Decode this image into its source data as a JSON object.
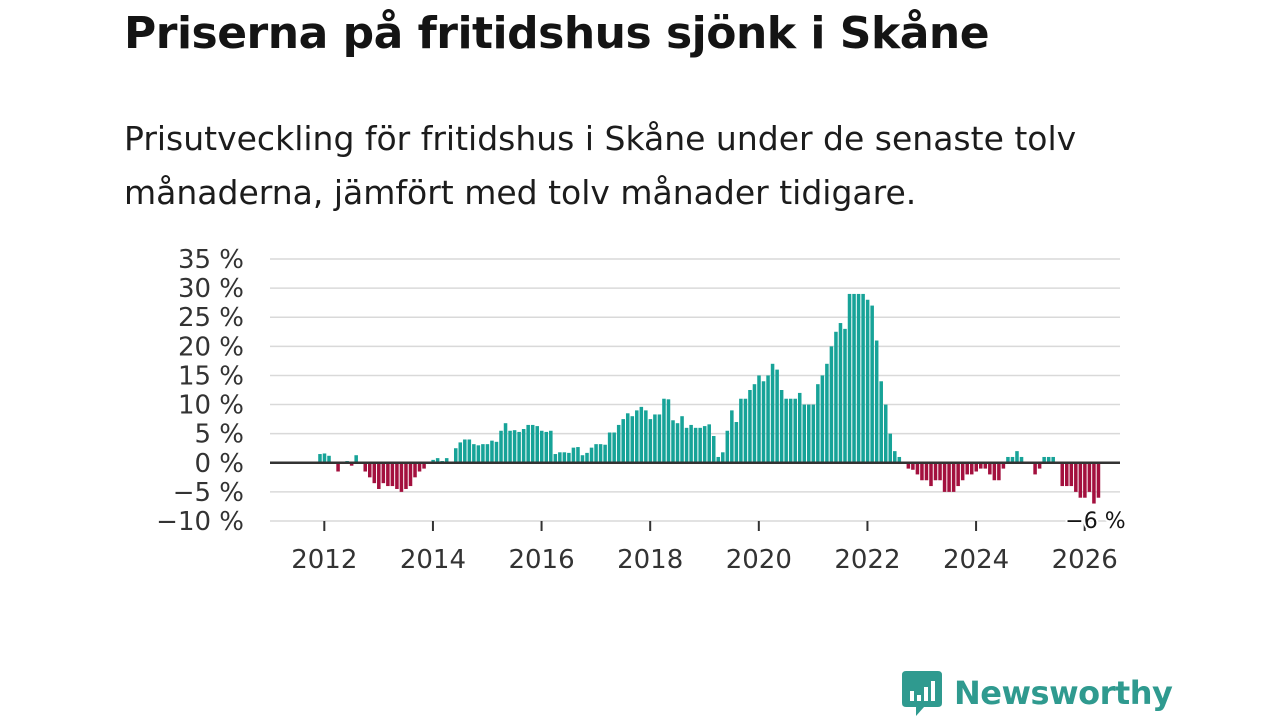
{
  "header": {
    "title": "Priserna på fritidshus sjönk i Skåne",
    "subtitle": "Prisutveckling för fritidshus i Skåne under de senaste tolv månaderna, jämfört med tolv månader tidigare."
  },
  "chart_data": {
    "type": "bar",
    "title": "Priserna på fritidshus sjönk i Skåne",
    "ylabel": "",
    "xlabel": "",
    "ylim": [
      -10,
      35
    ],
    "y_ticks": [
      "35 %",
      "30 %",
      "25 %",
      "20 %",
      "15 %",
      "10 %",
      "5 %",
      "0 %",
      "−5 %",
      "−10 %"
    ],
    "y_tick_values": [
      35,
      30,
      25,
      20,
      15,
      10,
      5,
      0,
      -5,
      -10
    ],
    "x_ticks": [
      "2012",
      "2014",
      "2016",
      "2018",
      "2020",
      "2022",
      "2024",
      "2026"
    ],
    "x_start": 2011.0,
    "x_end": 2026.65,
    "series_start_year": 2011.92,
    "frequency": "monthly",
    "colors": {
      "positive": "#17a398",
      "negative": "#a3103e",
      "grid": "#d9d9d9",
      "zero_line": "#333333"
    },
    "annotation": {
      "label": "−6 %",
      "value": -6
    },
    "values": [
      1.5,
      1.6,
      1.2,
      0.0,
      -1.5,
      0.0,
      0.3,
      -0.5,
      1.3,
      0.0,
      -1.5,
      -2.5,
      -3.5,
      -4.5,
      -3.5,
      -4.0,
      -4.0,
      -4.5,
      -5.0,
      -4.5,
      -4.0,
      -2.5,
      -1.5,
      -1.0,
      0.0,
      0.5,
      0.8,
      0.3,
      0.8,
      0.0,
      2.5,
      3.5,
      4.0,
      4.0,
      3.2,
      3.0,
      3.2,
      3.2,
      3.8,
      3.6,
      5.5,
      6.8,
      5.5,
      5.6,
      5.3,
      5.8,
      6.5,
      6.5,
      6.3,
      5.5,
      5.3,
      5.5,
      1.5,
      1.8,
      1.8,
      1.7,
      2.6,
      2.7,
      1.3,
      1.7,
      2.6,
      3.2,
      3.2,
      3.1,
      5.2,
      5.2,
      6.5,
      7.5,
      8.5,
      8.0,
      9.0,
      9.6,
      9.0,
      7.5,
      8.3,
      8.3,
      11.0,
      10.9,
      7.3,
      6.8,
      8.0,
      6.0,
      6.5,
      6.0,
      6.0,
      6.3,
      6.6,
      4.6,
      1.0,
      1.8,
      5.5,
      9.0,
      7.0,
      11.0,
      11.0,
      12.5,
      13.5,
      15.0,
      14.0,
      15.0,
      17.0,
      16.0,
      12.5,
      11.0,
      11.0,
      11.0,
      12.0,
      10.0,
      10.0,
      10.0,
      13.5,
      15.0,
      17.0,
      20.0,
      22.5,
      24.0,
      23.0,
      29.0,
      29.0,
      29.0,
      29.0,
      28.0,
      27.0,
      21.0,
      14.0,
      10.0,
      5.0,
      2.0,
      1.0,
      0.0,
      -1.0,
      -1.2,
      -2.0,
      -3.0,
      -3.0,
      -4.0,
      -3.0,
      -3.0,
      -5.0,
      -5.0,
      -5.0,
      -4.0,
      -3.0,
      -2.0,
      -2.0,
      -1.5,
      -1.0,
      -1.0,
      -2.0,
      -3.0,
      -3.0,
      -1.0,
      1.0,
      1.0,
      2.0,
      1.0,
      0.0,
      0.0,
      -2.0,
      -1.0,
      1.0,
      1.0,
      1.0,
      0.0,
      -4.0,
      -4.0,
      -4.0,
      -5.0,
      -6.0,
      -6.0,
      -5.0,
      -7.0,
      -6.0
    ]
  },
  "brand": {
    "name": "Newsworthy",
    "icon": "newsworthy-logo-icon",
    "color": "#2f9a8f"
  }
}
